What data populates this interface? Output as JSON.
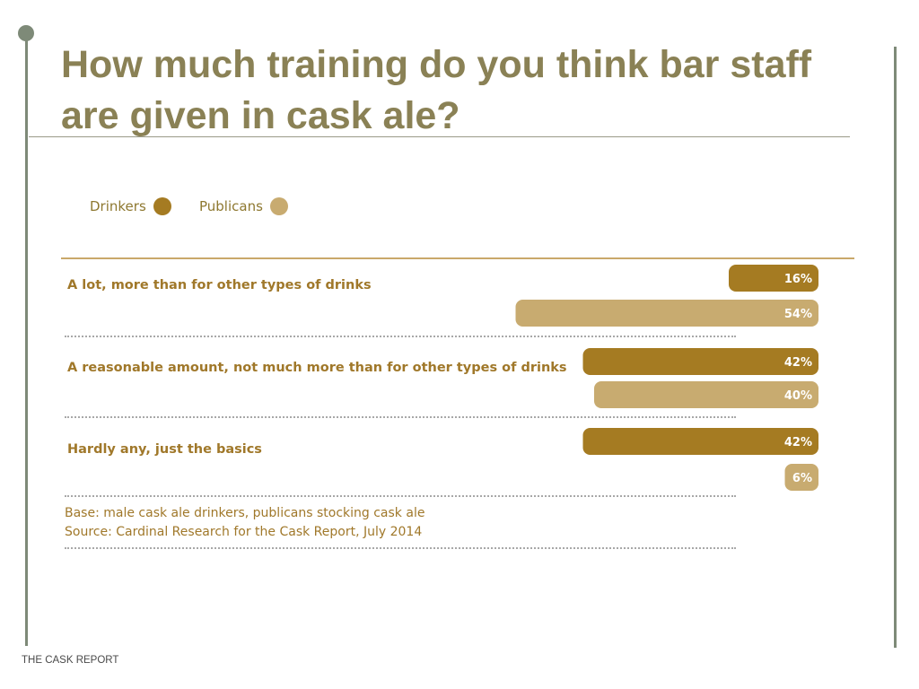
{
  "slide": {
    "title": "How much training do you think bar staff are given in cask ale?",
    "footer": "THE CASK REPORT"
  },
  "colors": {
    "accent_text": "#a0782a",
    "title": "#8a8155",
    "rule": "#7e8a78",
    "drinkers": "#a57b22",
    "publicans": "#c8ab70"
  },
  "legend": [
    {
      "label": "Drinkers",
      "color": "#a57b22"
    },
    {
      "label": "Publicans",
      "color": "#c8ab70"
    }
  ],
  "chart_data": {
    "type": "bar",
    "orientation": "horizontal",
    "title": "How much training do you think bar staff are given in cask ale?",
    "categories": [
      "A lot, more than for other types of drinks",
      "A reasonable amount, not much more than for other types of drinks",
      "Hardly any, just the basics"
    ],
    "series": [
      {
        "name": "Drinkers",
        "color": "#a57b22",
        "values": [
          16,
          42,
          42
        ],
        "labels": [
          "16%",
          "42%",
          "42%"
        ]
      },
      {
        "name": "Publicans",
        "color": "#c8ab70",
        "values": [
          54,
          40,
          6
        ],
        "labels": [
          "54%",
          "40%",
          "6%"
        ]
      }
    ],
    "unit": "%",
    "xlim": [
      0,
      100
    ],
    "legend_position": "top-left",
    "grid": false
  },
  "notes": {
    "base": "Base: male cask ale drinkers, publicans stocking cask ale",
    "source": "Source: Cardinal Research for the Cask Report, July 2014"
  }
}
